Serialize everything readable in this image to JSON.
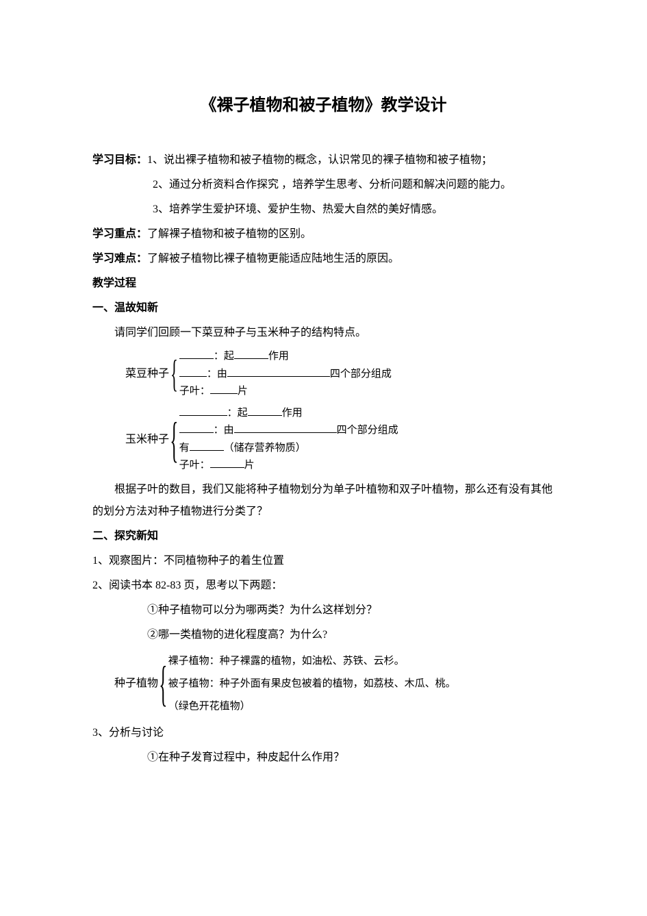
{
  "title": "《裸子植物和被子植物》教学设计",
  "goals_label": "学习目标：",
  "goals": [
    "1、说出裸子植物和被子植物的概念，认识常见的裸子植物和被子植物；",
    "2、通过分析资料合作探究 ，培养学生思考、分析问题和解决问题的能力。",
    "3、培养学生爱护环境、爱护生物、热爱大自然的美好情感。"
  ],
  "focus_label": "学习重点：",
  "focus_text": "了解裸子植物和被子植物的区别。",
  "difficulty_label": "学习难点：",
  "difficulty_text": "了解被子植物比裸子植物更能适应陆地生活的原因。",
  "process_label": "教学过程",
  "section1_title": "一、温故知新",
  "section1_intro": "请同学们回顾一下菜豆种子与玉米种子的结构特点。",
  "brace1_label": "菜豆种子",
  "brace1_lines": {
    "l1a": "：起",
    "l1b": "作用",
    "l2a": "：由",
    "l2b": "四个部分组成",
    "l3a": "子叶：",
    "l3b": "片"
  },
  "brace2_label": "玉米种子",
  "brace2_lines": {
    "l1a": "：起",
    "l1b": "作用",
    "l2a": "：由",
    "l2b": "四个部分组成",
    "l3a": "有",
    "l3b": "（储存营养物质）",
    "l4a": "子叶：",
    "l4b": "片"
  },
  "section1_q": "根据子叶的数目，我们又能将种子植物划分为单子叶植物和双子叶植物，那么还有没有其他的划分方法对种子植物进行分类了？",
  "section2_title": "二、探究新知",
  "section2_item1": "1、观察图片：不同植物种子的着生位置",
  "section2_item2": "2、阅读书本 82-83 页，思考以下两题：",
  "section2_q1": "①种子植物可以分为哪两类？为什么这样划分？",
  "section2_q2": "②哪一类植物的进化程度高？为什么?",
  "brace3_label": "种子植物",
  "brace3_lines": {
    "l1": "裸子植物：种子裸露的植物，如油松、苏铁、云杉。",
    "l2": "被子植物：种子外面有果皮包被着的植物，如荔枝、木瓜、桃。",
    "l3": "（绿色开花植物）"
  },
  "section2_item3": "3、分析与讨论",
  "section2_q3": "①在种子发育过程中，种皮起什么作用？"
}
